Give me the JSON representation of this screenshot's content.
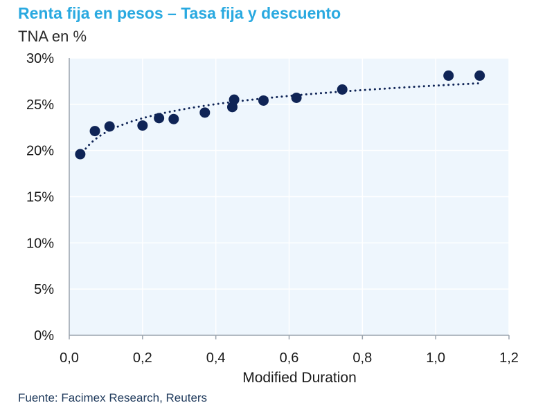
{
  "title": "Renta fija en pesos – Tasa fija y descuento",
  "subtitle": "TNA en %",
  "source": "Fuente: Facimex Research, Reuters",
  "colors": {
    "title": "#29a9e0",
    "plot_background": "#eef6fd",
    "points": "#0f2456",
    "trend": "#0f2456",
    "grid": "#ffffff",
    "axis": "#9aa3ad"
  },
  "chart_data": {
    "type": "scatter",
    "title": "Renta fija en pesos – Tasa fija y descuento",
    "subtitle": "TNA en %",
    "xlabel": "Modified Duration",
    "ylabel": "TNA en %",
    "xlim": [
      0,
      1.2
    ],
    "ylim": [
      0,
      30
    ],
    "x_ticks": [
      "0,0",
      "0,2",
      "0,4",
      "0,6",
      "0,8",
      "1,0",
      "1,2"
    ],
    "y_ticks": [
      "0%",
      "5%",
      "10%",
      "15%",
      "20%",
      "25%",
      "30%"
    ],
    "grid": true,
    "legend": "none",
    "trendline": "logarithmic (dotted)",
    "series": [
      {
        "points": [
          {
            "x": 0.03,
            "y": 19.6
          },
          {
            "x": 0.07,
            "y": 22.1
          },
          {
            "x": 0.11,
            "y": 22.6
          },
          {
            "x": 0.2,
            "y": 22.7
          },
          {
            "x": 0.245,
            "y": 23.5
          },
          {
            "x": 0.285,
            "y": 23.4
          },
          {
            "x": 0.37,
            "y": 24.1
          },
          {
            "x": 0.445,
            "y": 24.7
          },
          {
            "x": 0.45,
            "y": 25.5
          },
          {
            "x": 0.53,
            "y": 25.4
          },
          {
            "x": 0.62,
            "y": 25.7
          },
          {
            "x": 0.745,
            "y": 26.6
          },
          {
            "x": 1.035,
            "y": 28.1
          },
          {
            "x": 1.12,
            "y": 28.1
          }
        ]
      }
    ]
  }
}
